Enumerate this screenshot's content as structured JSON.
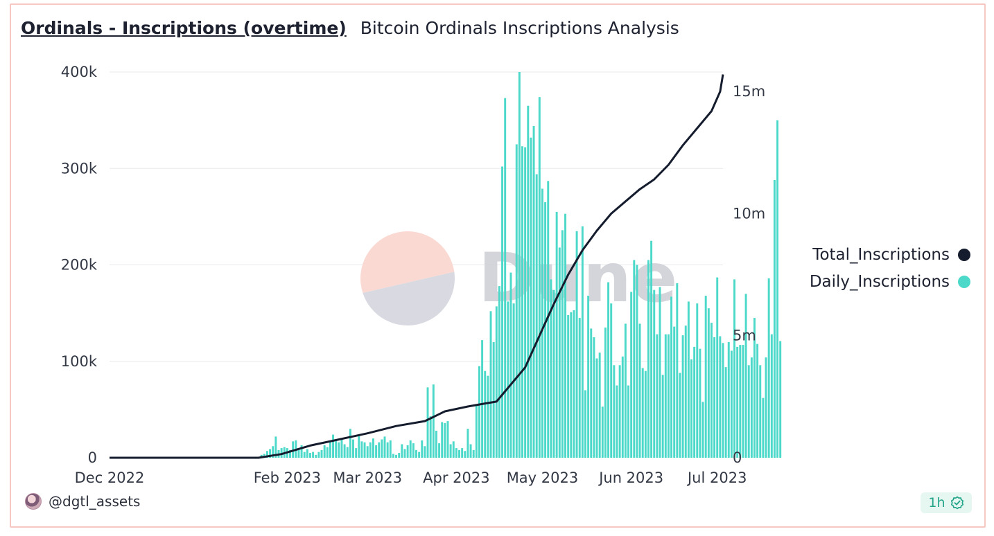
{
  "header": {
    "title": "Ordinals - Inscriptions (overtime)",
    "subtitle": "Bitcoin Ordinals Inscriptions Analysis"
  },
  "footer": {
    "author": "@dgtl_assets",
    "refresh": "1h"
  },
  "watermark": {
    "text": "Dune"
  },
  "colors": {
    "daily": "#4dd9c9",
    "total": "#141c2d",
    "grid": "#e8e9ec",
    "axis_text": "#333845",
    "badge": "#24a58a"
  },
  "chart_data": {
    "type": "bar+line",
    "title": "Ordinals - Inscriptions (overtime)",
    "subtitle": "Bitcoin Ordinals Inscriptions Analysis",
    "x_range_days": [
      0,
      214
    ],
    "x_ticks": [
      {
        "label": "Dec 2022",
        "day": 0
      },
      {
        "label": "Feb 2023",
        "day": 62
      },
      {
        "label": "Mar 2023",
        "day": 90
      },
      {
        "label": "Apr 2023",
        "day": 121
      },
      {
        "label": "May 2023",
        "day": 151
      },
      {
        "label": "Jun 2023",
        "day": 182
      },
      {
        "label": "Jul 2023",
        "day": 212
      }
    ],
    "y_left": {
      "min": 0,
      "max": 400000,
      "ticks": [
        0,
        100000,
        200000,
        300000,
        400000
      ],
      "tick_labels": [
        "0",
        "100k",
        "200k",
        "300k",
        "400k"
      ]
    },
    "y_right": {
      "min": 0,
      "max": 15800000,
      "ticks": [
        0,
        5000000,
        10000000,
        15000000
      ],
      "tick_labels": [
        "0",
        "5m",
        "10m",
        "15m"
      ]
    },
    "legend": [
      {
        "name": "Total_Inscriptions",
        "color": "#141c2d",
        "axis": "right",
        "type": "line"
      },
      {
        "name": "Daily_Inscriptions",
        "color": "#4dd9c9",
        "axis": "left",
        "type": "bar"
      }
    ],
    "daily_start_day": 52,
    "daily_inscriptions": [
      1000,
      3000,
      4000,
      7000,
      9000,
      12000,
      22000,
      8000,
      10000,
      11000,
      10000,
      8000,
      17000,
      18000,
      10000,
      13000,
      6000,
      9000,
      5000,
      6000,
      3000,
      6000,
      8000,
      13000,
      11000,
      17000,
      24000,
      19000,
      16000,
      19000,
      14000,
      11000,
      30000,
      19000,
      10000,
      23000,
      17000,
      16000,
      12000,
      16000,
      20000,
      13000,
      16000,
      19000,
      22000,
      16000,
      18000,
      4000,
      3000,
      5000,
      14000,
      9000,
      13000,
      18000,
      15000,
      8000,
      6000,
      18000,
      12000,
      73000,
      43000,
      76000,
      28000,
      15000,
      37000,
      36000,
      38000,
      14000,
      17000,
      10000,
      8000,
      10000,
      7000,
      30000,
      14000,
      8000,
      55000,
      95000,
      122000,
      90000,
      85000,
      152000,
      120000,
      157000,
      178000,
      302000,
      373000,
      162000,
      192000,
      160000,
      325000,
      400000,
      323000,
      322000,
      365000,
      332000,
      344000,
      294000,
      374000,
      279000,
      265000,
      287000,
      185000,
      174000,
      255000,
      218000,
      236000,
      253000,
      148000,
      151000,
      153000,
      235000,
      145000,
      240000,
      70000,
      168000,
      134000,
      125000,
      103000,
      109000,
      53000,
      135000,
      182000,
      160000,
      96000,
      75000,
      96000,
      105000,
      139000,
      75000,
      172000,
      205000,
      200000,
      139000,
      93000,
      90000,
      205000,
      225000,
      174000,
      128000,
      177000,
      86000,
      128000,
      128000,
      167000,
      136000,
      181000,
      88000,
      127000,
      137000,
      162000,
      102000,
      115000,
      160000,
      113000,
      58000,
      168000,
      155000,
      140000,
      125000,
      187000,
      126000,
      119000,
      94000,
      120000,
      111000,
      185000,
      115000,
      117000,
      117000,
      170000,
      96000,
      104000,
      145000,
      118000,
      96000,
      62000,
      104000,
      186000,
      128000,
      288000,
      350000,
      121000
    ],
    "total_inscriptions_points": [
      [
        0,
        0
      ],
      [
        52,
        0
      ],
      [
        60,
        150000
      ],
      [
        70,
        500000
      ],
      [
        80,
        750000
      ],
      [
        90,
        1000000
      ],
      [
        100,
        1300000
      ],
      [
        110,
        1500000
      ],
      [
        117,
        1900000
      ],
      [
        125,
        2100000
      ],
      [
        130,
        2200000
      ],
      [
        135,
        2300000
      ],
      [
        140,
        3000000
      ],
      [
        145,
        3700000
      ],
      [
        150,
        5000000
      ],
      [
        155,
        6300000
      ],
      [
        160,
        7500000
      ],
      [
        165,
        8500000
      ],
      [
        170,
        9300000
      ],
      [
        175,
        10000000
      ],
      [
        180,
        10500000
      ],
      [
        185,
        11000000
      ],
      [
        190,
        11400000
      ],
      [
        195,
        12000000
      ],
      [
        200,
        12800000
      ],
      [
        205,
        13500000
      ],
      [
        210,
        14200000
      ],
      [
        213,
        15000000
      ],
      [
        214,
        15700000
      ]
    ]
  }
}
